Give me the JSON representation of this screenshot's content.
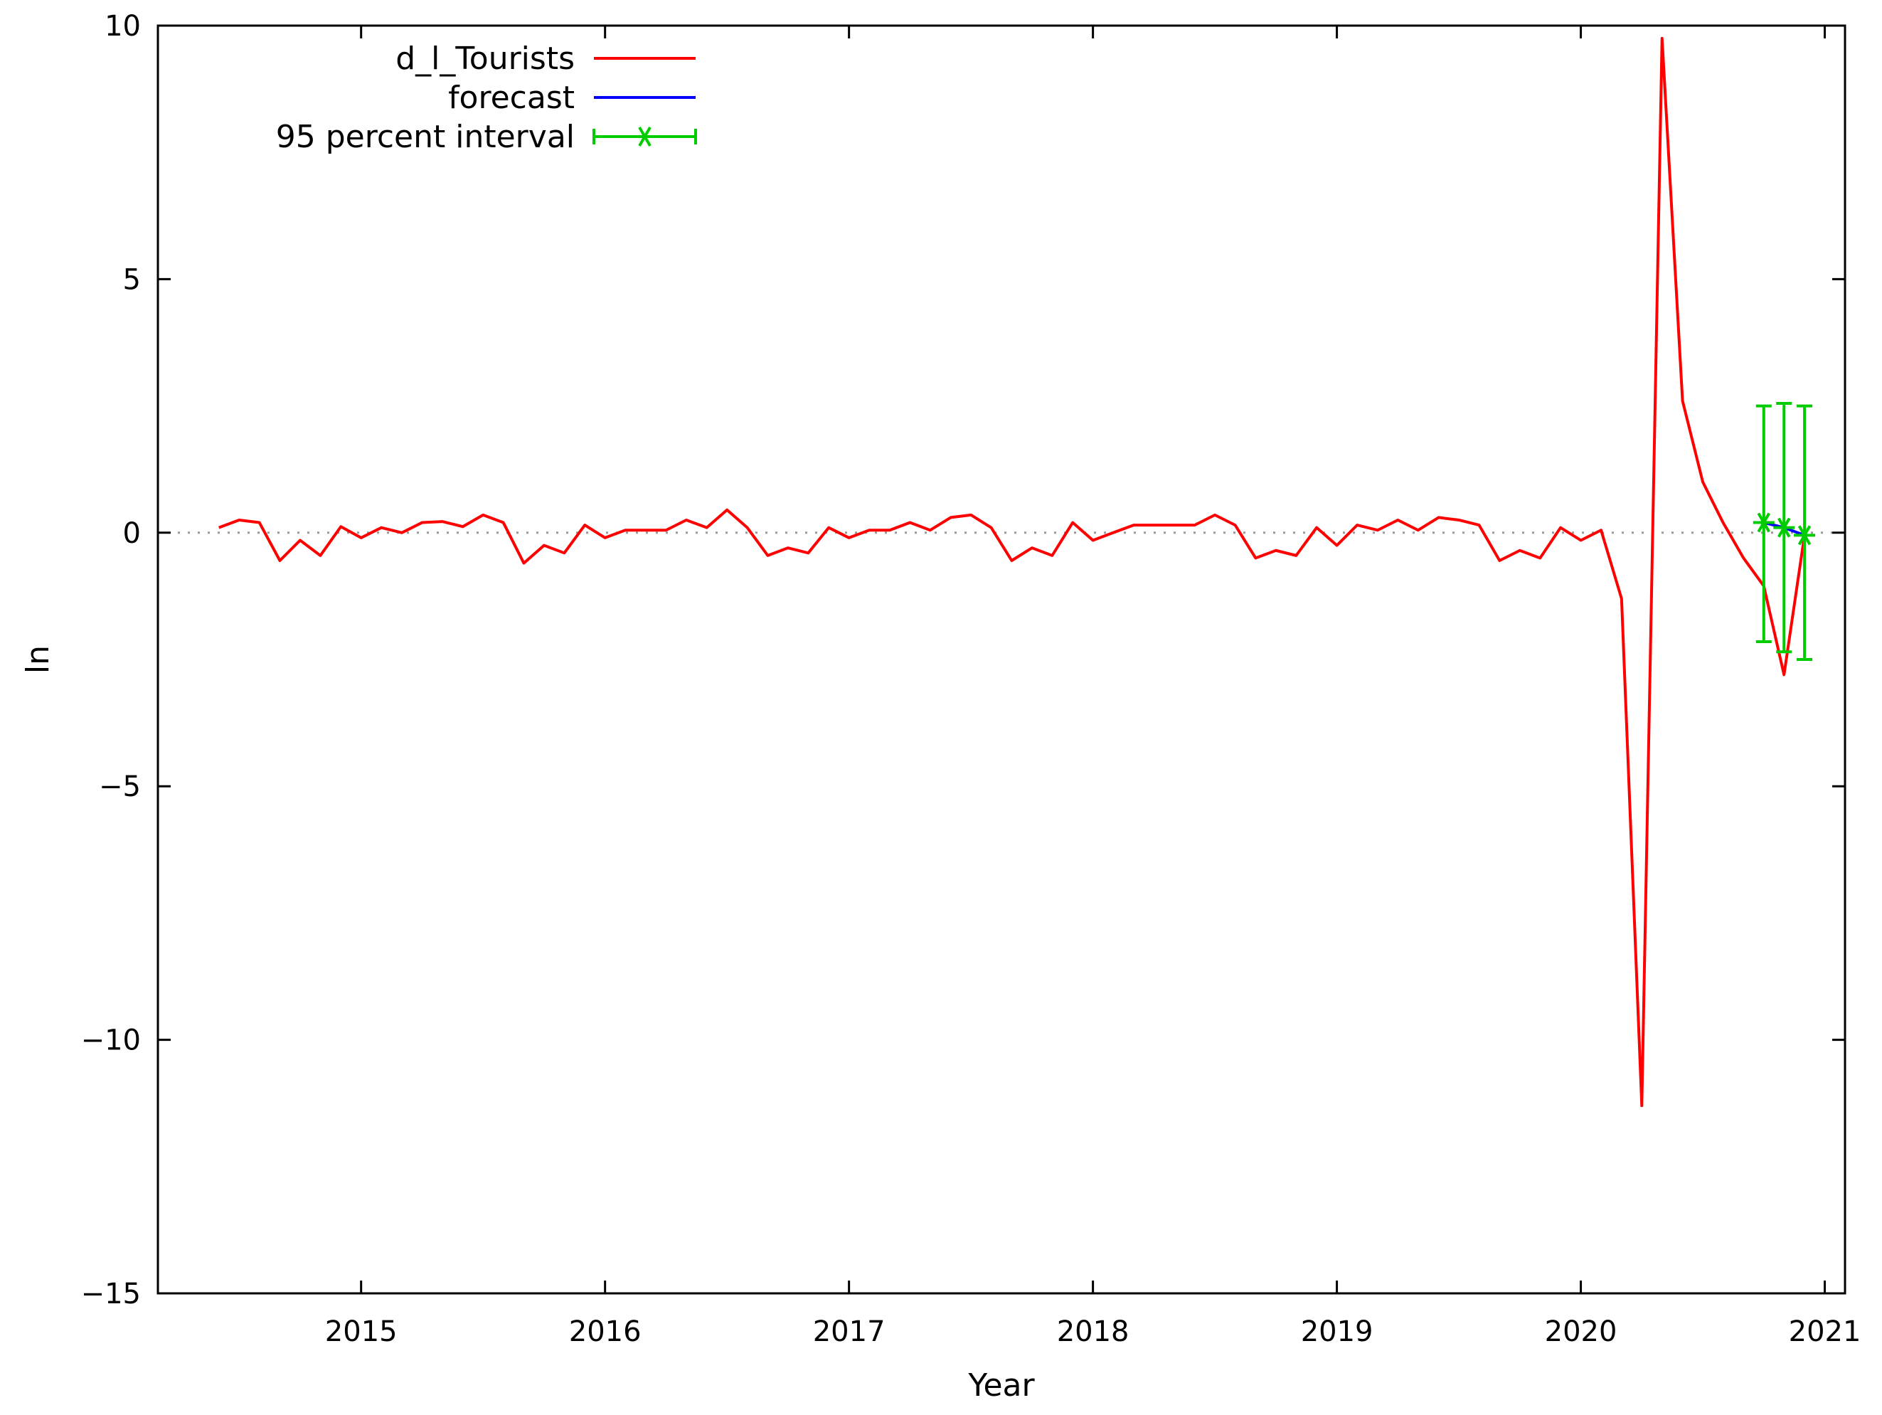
{
  "chart_data": {
    "type": "line",
    "title": "",
    "xlabel": "Year",
    "ylabel": "ln",
    "xlim": [
      2014.167,
      2021.083
    ],
    "ylim": [
      -15,
      10
    ],
    "x_ticks": [
      2015,
      2016,
      2017,
      2018,
      2019,
      2020,
      2021
    ],
    "x_tick_labels": [
      "2015",
      "2016",
      "2017",
      "2018",
      "2019",
      "2020",
      "2021"
    ],
    "y_ticks": [
      -15,
      -10,
      -5,
      0,
      5,
      10
    ],
    "y_tick_labels": [
      "−15",
      "−10",
      "−5",
      "0",
      "5",
      "10"
    ],
    "zero_line": true,
    "grid": false,
    "legend_position": "top-left",
    "colors": {
      "d_l_Tourists": "#ff0000",
      "forecast": "#0000ff",
      "interval": "#00cc00"
    },
    "series": [
      {
        "name": "d_l_Tourists",
        "type": "line",
        "x": [
          2014.417,
          2014.5,
          2014.583,
          2014.667,
          2014.75,
          2014.833,
          2014.917,
          2015.0,
          2015.083,
          2015.167,
          2015.25,
          2015.333,
          2015.417,
          2015.5,
          2015.583,
          2015.667,
          2015.75,
          2015.833,
          2015.917,
          2016.0,
          2016.083,
          2016.167,
          2016.25,
          2016.333,
          2016.417,
          2016.5,
          2016.583,
          2016.667,
          2016.75,
          2016.833,
          2016.917,
          2017.0,
          2017.083,
          2017.167,
          2017.25,
          2017.333,
          2017.417,
          2017.5,
          2017.583,
          2017.667,
          2017.75,
          2017.833,
          2017.917,
          2018.0,
          2018.083,
          2018.167,
          2018.25,
          2018.333,
          2018.417,
          2018.5,
          2018.583,
          2018.667,
          2018.75,
          2018.833,
          2018.917,
          2019.0,
          2019.083,
          2019.167,
          2019.25,
          2019.333,
          2019.417,
          2019.5,
          2019.583,
          2019.667,
          2019.75,
          2019.833,
          2019.917,
          2020.0,
          2020.083,
          2020.167,
          2020.25,
          2020.333,
          2020.417,
          2020.5,
          2020.583,
          2020.667,
          2020.75,
          2020.833,
          2020.917
        ],
        "values": [
          0.1,
          0.25,
          0.2,
          -0.55,
          -0.15,
          -0.45,
          0.12,
          -0.1,
          0.1,
          0.0,
          0.2,
          0.22,
          0.12,
          0.35,
          0.2,
          -0.6,
          -0.25,
          -0.4,
          0.15,
          -0.1,
          0.05,
          0.05,
          0.05,
          0.25,
          0.1,
          0.45,
          0.1,
          -0.45,
          -0.3,
          -0.4,
          0.1,
          -0.1,
          0.05,
          0.05,
          0.2,
          0.05,
          0.3,
          0.35,
          0.1,
          -0.55,
          -0.3,
          -0.45,
          0.2,
          -0.15,
          0.0,
          0.15,
          0.15,
          0.15,
          0.15,
          0.35,
          0.15,
          -0.5,
          -0.35,
          -0.45,
          0.1,
          -0.25,
          0.15,
          0.05,
          0.25,
          0.05,
          0.3,
          0.25,
          0.15,
          -0.55,
          -0.35,
          -0.5,
          0.1,
          -0.15,
          0.05,
          -1.3,
          -11.3,
          9.75,
          2.6,
          1.0,
          0.2,
          -0.5,
          -1.05,
          -2.8,
          -0.05
        ]
      },
      {
        "name": "forecast",
        "type": "line",
        "x": [
          2020.75,
          2020.833,
          2020.917
        ],
        "values": [
          0.2,
          0.1,
          -0.05
        ]
      },
      {
        "name": "95 percent interval",
        "type": "errorbar",
        "x": [
          2020.75,
          2020.833,
          2020.917
        ],
        "center": [
          0.2,
          0.1,
          -0.05
        ],
        "lower": [
          -2.15,
          -2.35,
          -2.5
        ],
        "upper": [
          2.5,
          2.55,
          2.5
        ]
      }
    ]
  }
}
